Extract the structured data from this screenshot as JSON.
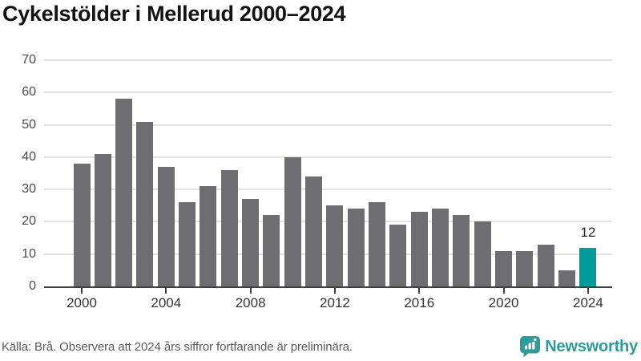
{
  "title": "Cykelstölder i Mellerud 2000–2024",
  "footer": {
    "source_note": "Källa: Brå. Observera att 2024 års siffror fortfarande är preliminära.",
    "brand": "Newsworthy"
  },
  "colors": {
    "bar": "#6d6d72",
    "highlight": "#009c9c",
    "grid": "#e3e3e3",
    "axis": "#404040",
    "y_label": "#4a4a4a",
    "x_label": "#333333",
    "logo_teal": "#2f9c99"
  },
  "chart_data": {
    "type": "bar",
    "title": "Cykelstölder i Mellerud 2000–2024",
    "xlabel": "",
    "ylabel": "",
    "categories": [
      2000,
      2001,
      2002,
      2003,
      2004,
      2005,
      2006,
      2007,
      2008,
      2009,
      2010,
      2011,
      2012,
      2013,
      2014,
      2015,
      2016,
      2017,
      2018,
      2019,
      2020,
      2021,
      2022,
      2023,
      2024
    ],
    "values": [
      38,
      41,
      58,
      51,
      37,
      26,
      31,
      36,
      27,
      22,
      40,
      34,
      25,
      24,
      26,
      19,
      23,
      24,
      22,
      20,
      11,
      11,
      13,
      5,
      12
    ],
    "highlight_category": 2024,
    "value_labels": [
      {
        "category": 2024,
        "text": "12"
      }
    ],
    "ylim": [
      0,
      70
    ],
    "ytick_step": 10,
    "xticks": [
      2000,
      2004,
      2008,
      2012,
      2016,
      2020,
      2024
    ],
    "grid": "horizontal",
    "legend": "none"
  }
}
